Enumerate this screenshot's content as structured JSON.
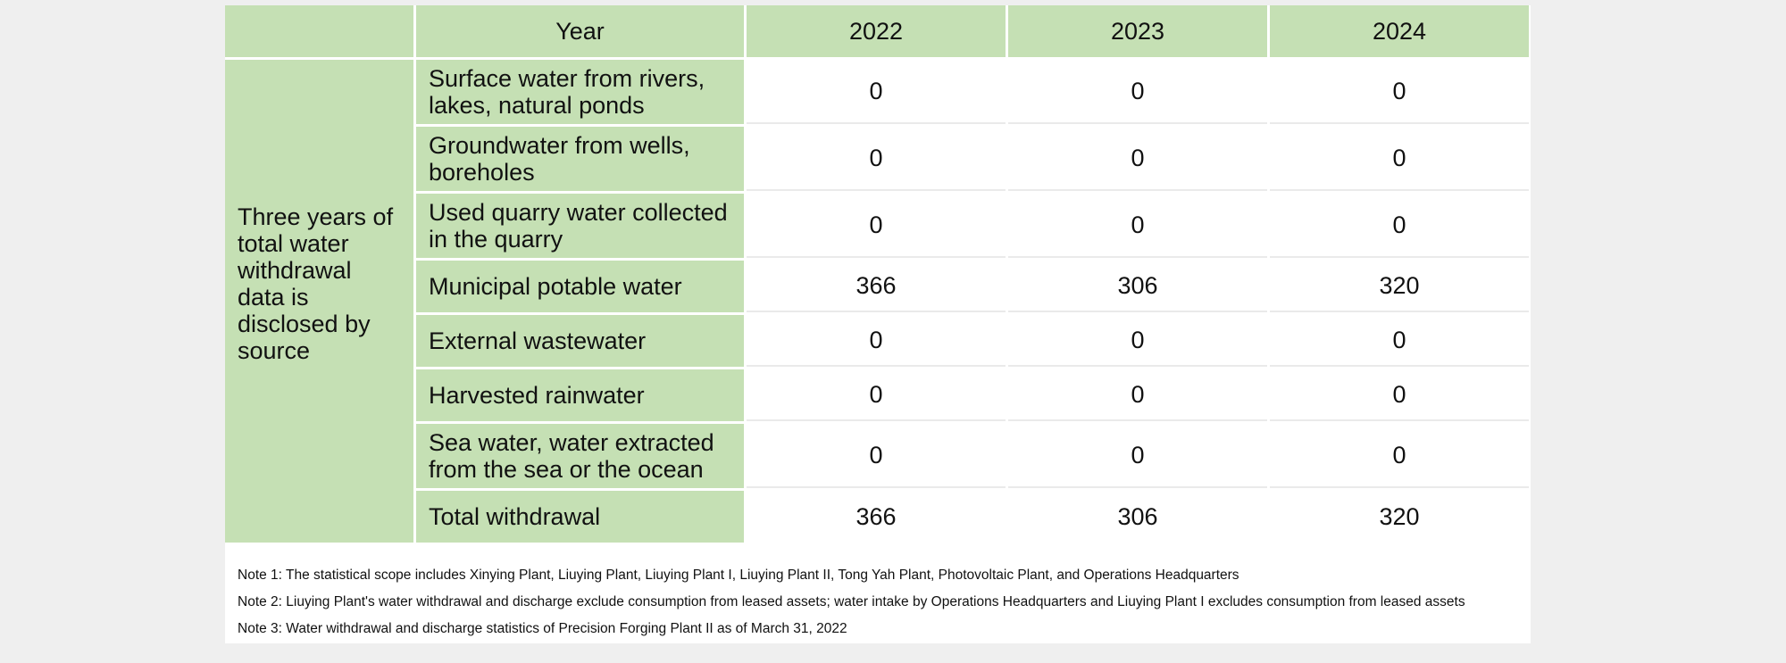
{
  "table": {
    "header": {
      "corner": "",
      "year_label": "Year",
      "years": [
        "2022",
        "2023",
        "2024"
      ]
    },
    "side_label": "Three years of total water withdrawal data is disclosed by source",
    "rows": [
      {
        "label": "Surface water from rivers, lakes, natural ponds",
        "values": [
          "0",
          "0",
          "0"
        ]
      },
      {
        "label": "Groundwater from wells, boreholes",
        "values": [
          "0",
          "0",
          "0"
        ]
      },
      {
        "label": "Used quarry water collected in the quarry",
        "values": [
          "0",
          "0",
          "0"
        ]
      },
      {
        "label": "Municipal potable water",
        "values": [
          "366",
          "306",
          "320"
        ]
      },
      {
        "label": "External wastewater",
        "values": [
          "0",
          "0",
          "0"
        ]
      },
      {
        "label": "Harvested rainwater",
        "values": [
          "0",
          "0",
          "0"
        ]
      },
      {
        "label": "Sea water, water extracted from the sea or the ocean",
        "values": [
          "0",
          "0",
          "0"
        ]
      },
      {
        "label": "Total withdrawal",
        "values": [
          "366",
          "306",
          "320"
        ]
      }
    ]
  },
  "notes": [
    "Note 1: The statistical scope includes Xinying Plant, Liuying Plant, Liuying Plant I, Liuying Plant II, Tong Yah Plant, Photovoltaic Plant, and Operations Headquarters",
    "Note 2: Liuying Plant's water withdrawal and discharge exclude consumption from leased assets; water intake by Operations Headquarters and Liuying Plant I excludes consumption from leased assets",
    "Note 3: Water withdrawal and discharge statistics of Precision Forging Plant II as of March 31, 2022"
  ],
  "colors": {
    "header_green": "#c5e0b4",
    "page_background": "#efefef"
  }
}
